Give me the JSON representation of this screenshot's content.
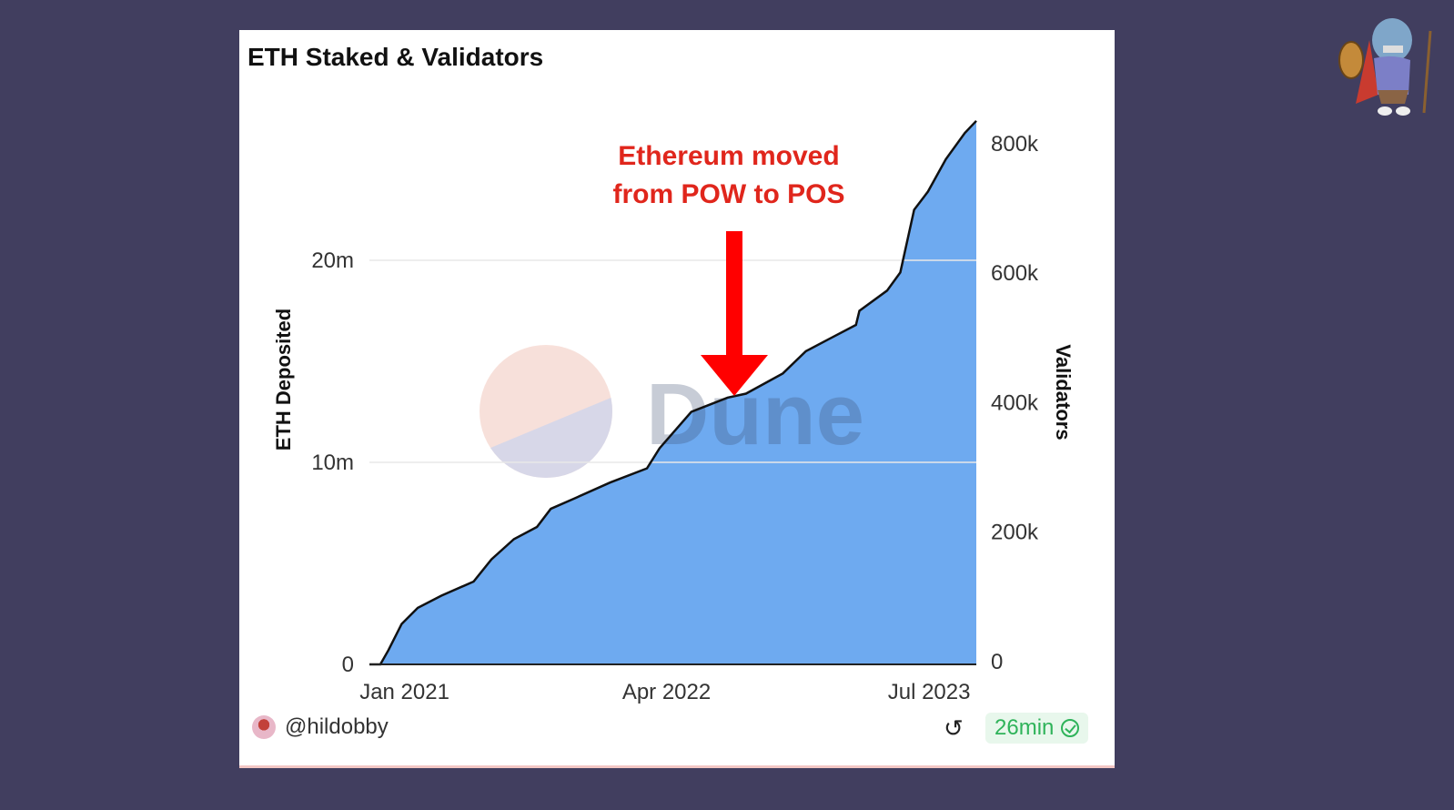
{
  "card": {
    "title": "ETH Staked & Validators",
    "author": "@hildobby",
    "refresh_icon": "refresh-icon",
    "freshness": "26min",
    "freshness_icon": "verified-check-icon",
    "watermark": "Dune"
  },
  "colors": {
    "background": "#413e5f",
    "area_fill": "#6eaaf0",
    "line": "#111111",
    "annotation": "#e0261c",
    "arrow": "#ff0000",
    "badge_text": "#2fb35a"
  },
  "chart_data": {
    "type": "area",
    "title": "ETH Staked & Validators",
    "ylabel": "ETH Deposited",
    "y2label": "Validators",
    "yticks": [
      "0",
      "10m",
      "20m"
    ],
    "y2ticks": [
      "0",
      "200k",
      "400k",
      "600k",
      "800k"
    ],
    "xticks": [
      "Jan 2021",
      "Apr 2022",
      "Jul 2023"
    ],
    "ylim": [
      0,
      27000000
    ],
    "y2lim": [
      0,
      810000
    ],
    "grid": true,
    "annotation": {
      "line1": "Ethereum moved",
      "line2": "from POW to POS",
      "date": "2022-09-15"
    },
    "series": [
      {
        "x": [
          "2020-11-20",
          "2020-12-04",
          "2020-12-27",
          "2021-01-24",
          "2021-03-06",
          "2021-05-01",
          "2021-06-01",
          "2021-07-10",
          "2021-08-19",
          "2021-09-12",
          "2021-10-22",
          "2021-12-24",
          "2022-02-26",
          "2022-03-20",
          "2022-05-14",
          "2022-07-16",
          "2022-08-17",
          "2022-10-20",
          "2022-11-29",
          "2023-01-08",
          "2023-02-24",
          "2023-03-02",
          "2023-04-19",
          "2023-05-12",
          "2023-06-05",
          "2023-06-29",
          "2023-07-30",
          "2023-09-01",
          "2023-09-21"
        ],
        "values": [
          0,
          700000,
          2000000,
          2800000,
          3400000,
          4100000,
          5200000,
          6200000,
          6800000,
          7700000,
          8200000,
          9000000,
          9700000,
          10700000,
          12500000,
          13200000,
          13400000,
          14400000,
          15500000,
          16100000,
          16800000,
          17500000,
          18500000,
          19400000,
          22500000,
          23400000,
          25000000,
          26300000,
          26900000
        ]
      }
    ]
  }
}
